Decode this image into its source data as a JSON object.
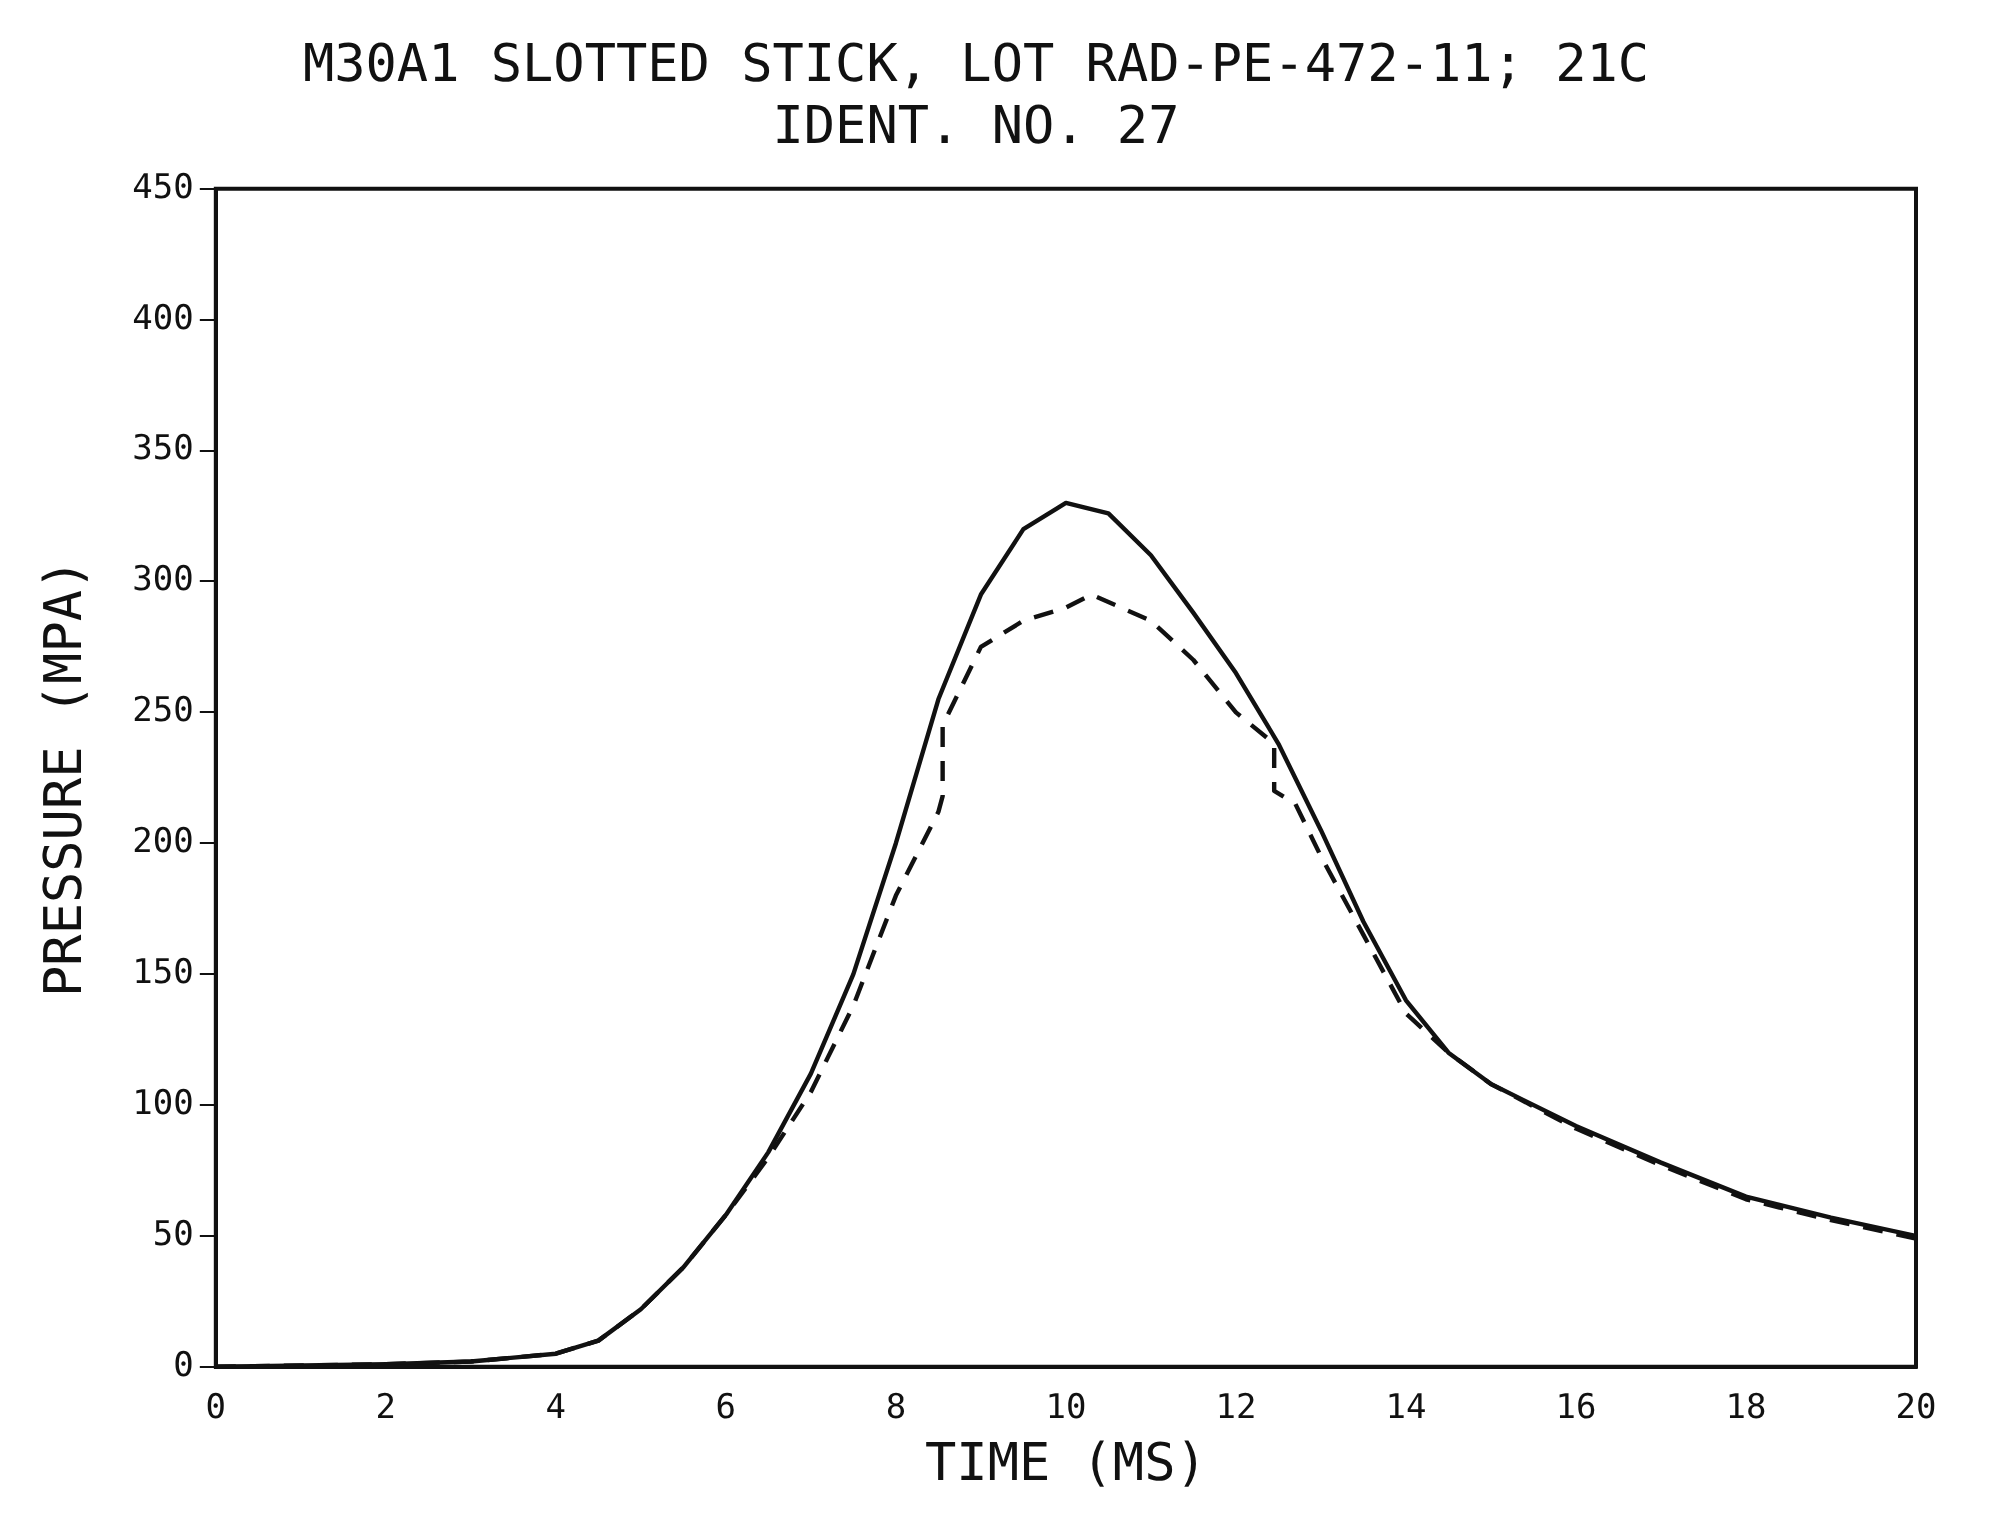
{
  "chart_data": {
    "type": "line",
    "title": "M30A1 SLOTTED STICK, LOT RAD-PE-472-11; 21C",
    "subtitle": "IDENT. NO. 27",
    "xlabel": "TIME (MS)",
    "ylabel": "PRESSURE (MPA)",
    "xlim": [
      0,
      20
    ],
    "xticks": [
      0,
      2,
      4,
      6,
      8,
      10,
      12,
      14,
      16,
      18,
      20
    ],
    "ylim": [
      0,
      450
    ],
    "yticks": [
      0,
      50,
      100,
      150,
      200,
      250,
      300,
      350,
      400,
      450
    ],
    "grid": false,
    "legend": false,
    "marker": "none",
    "series": [
      {
        "color": "#111111",
        "line_style": "solid",
        "x": [
          0,
          2,
          3,
          4,
          4.5,
          5,
          5.5,
          6,
          6.5,
          7,
          7.5,
          8,
          8.5,
          9,
          9.5,
          10,
          10.5,
          11,
          11.5,
          12,
          12.5,
          13,
          13.5,
          14,
          14.5,
          15,
          16,
          17,
          18,
          19,
          20
        ],
        "values": [
          0,
          1,
          2,
          5,
          10,
          22,
          38,
          58,
          82,
          112,
          150,
          200,
          255,
          295,
          320,
          330,
          326,
          310,
          288,
          265,
          238,
          205,
          170,
          140,
          120,
          108,
          92,
          78,
          65,
          57,
          50
        ]
      },
      {
        "color": "#111111",
        "line_style": "dashed",
        "x": [
          0,
          2,
          3,
          4,
          4.5,
          5,
          5.5,
          6,
          6.5,
          7,
          7.5,
          8,
          8.5,
          8.55,
          8.55,
          9,
          9.5,
          10,
          10.3,
          11,
          11.5,
          12,
          12.45,
          12.45,
          12.7,
          13,
          13.5,
          14,
          14.5,
          15,
          16,
          17,
          18,
          19,
          20
        ],
        "values": [
          0,
          1,
          2,
          5,
          10,
          22,
          38,
          58,
          80,
          105,
          138,
          180,
          212,
          218,
          245,
          275,
          285,
          290,
          295,
          285,
          270,
          250,
          238,
          220,
          215,
          195,
          165,
          135,
          120,
          108,
          91,
          77,
          64,
          56,
          49
        ]
      }
    ]
  }
}
